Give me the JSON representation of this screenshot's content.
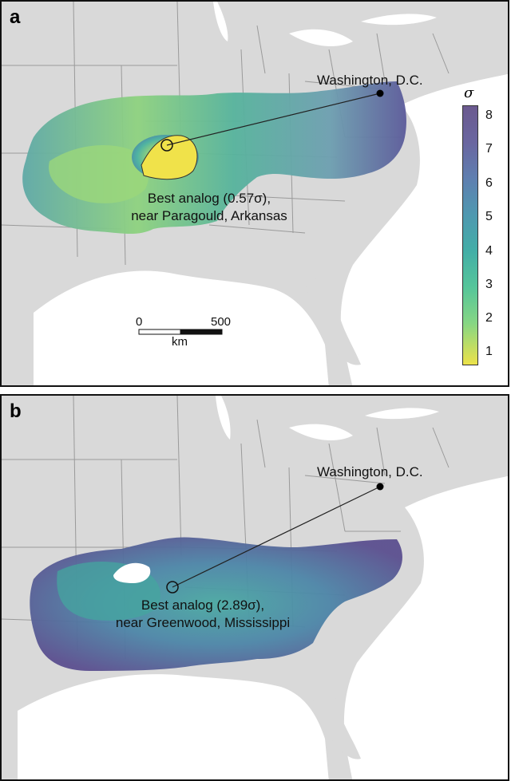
{
  "panel_a": {
    "letter": "a",
    "city_label": "Washington, D.C.",
    "analog_label_line1": "Best analog (0.57σ),",
    "analog_label_line2": "near Paragould, Arkansas",
    "colorbar": {
      "title": "σ",
      "ticks": [
        "8",
        "7",
        "6",
        "5",
        "4",
        "3",
        "2",
        "1"
      ],
      "colors": {
        "high": "#6b5a8f",
        "mid": "#43aea7",
        "low": "#ece24a"
      }
    },
    "scalebar": {
      "start": "0",
      "end": "500",
      "unit": "km"
    }
  },
  "panel_b": {
    "letter": "b",
    "city_label": "Washington, D.C.",
    "analog_label_line1": "Best analog (2.89σ),",
    "analog_label_line2": "near Greenwood, Mississippi"
  },
  "colors": {
    "land": "#d9d9d9",
    "water": "#ffffff",
    "borders": "#9a9a9a",
    "purple": "#5b4f8f",
    "teal": "#43aea7",
    "yellow": "#ece24a"
  }
}
